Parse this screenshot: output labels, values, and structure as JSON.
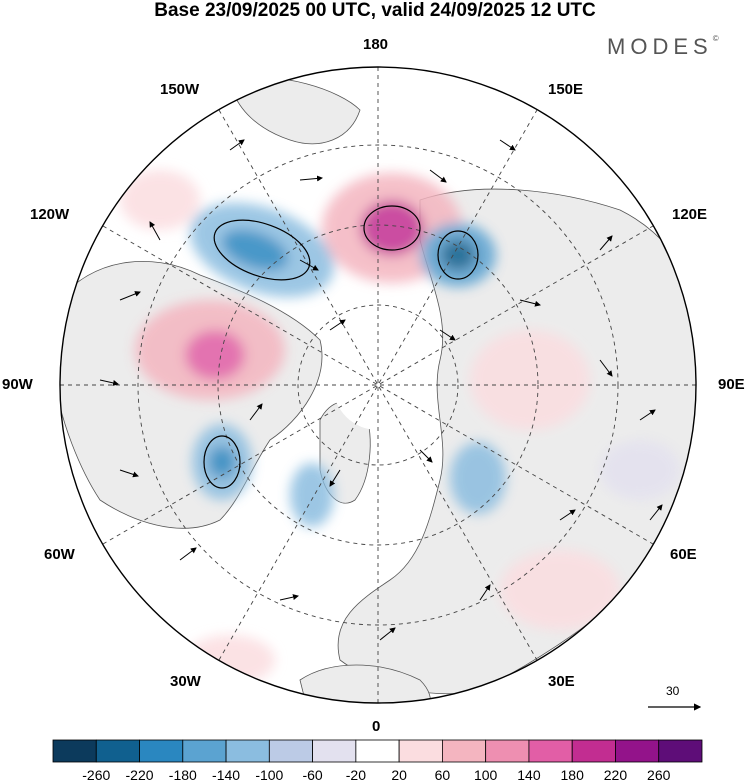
{
  "title": "Base 23/09/2025 00 UTC, valid 24/09/2025 12 UTC",
  "brand": "MODES",
  "brand_mark": "©",
  "longitude_labels": {
    "top": "180",
    "bottom": "0",
    "left": "90W",
    "right": "90E",
    "upper_left_1": "150W",
    "upper_left_2": "120W",
    "upper_right_1": "150E",
    "upper_right_2": "120E",
    "lower_left_1": "60W",
    "lower_left_2": "30W",
    "lower_right_1": "60E",
    "lower_right_2": "30E"
  },
  "wind_scale_label": "30",
  "colorbar": {
    "ticks": [
      "-260",
      "-220",
      "-180",
      "-140",
      "-100",
      "-60",
      "-20",
      "20",
      "60",
      "100",
      "140",
      "180",
      "220",
      "260"
    ],
    "colors": [
      "#0c3a5c",
      "#10608f",
      "#2a87c0",
      "#5ba3d1",
      "#8bbde0",
      "#bccbe6",
      "#e3e1ef",
      "#ffffff",
      "#fbdde0",
      "#f4b5c0",
      "#ee8fb1",
      "#e25ea6",
      "#c22d91",
      "#93138a",
      "#5e0d78"
    ]
  },
  "colors": {
    "land": "#ececec",
    "ocean": "#ffffff",
    "coast": "#555555",
    "grid": "#444444"
  }
}
